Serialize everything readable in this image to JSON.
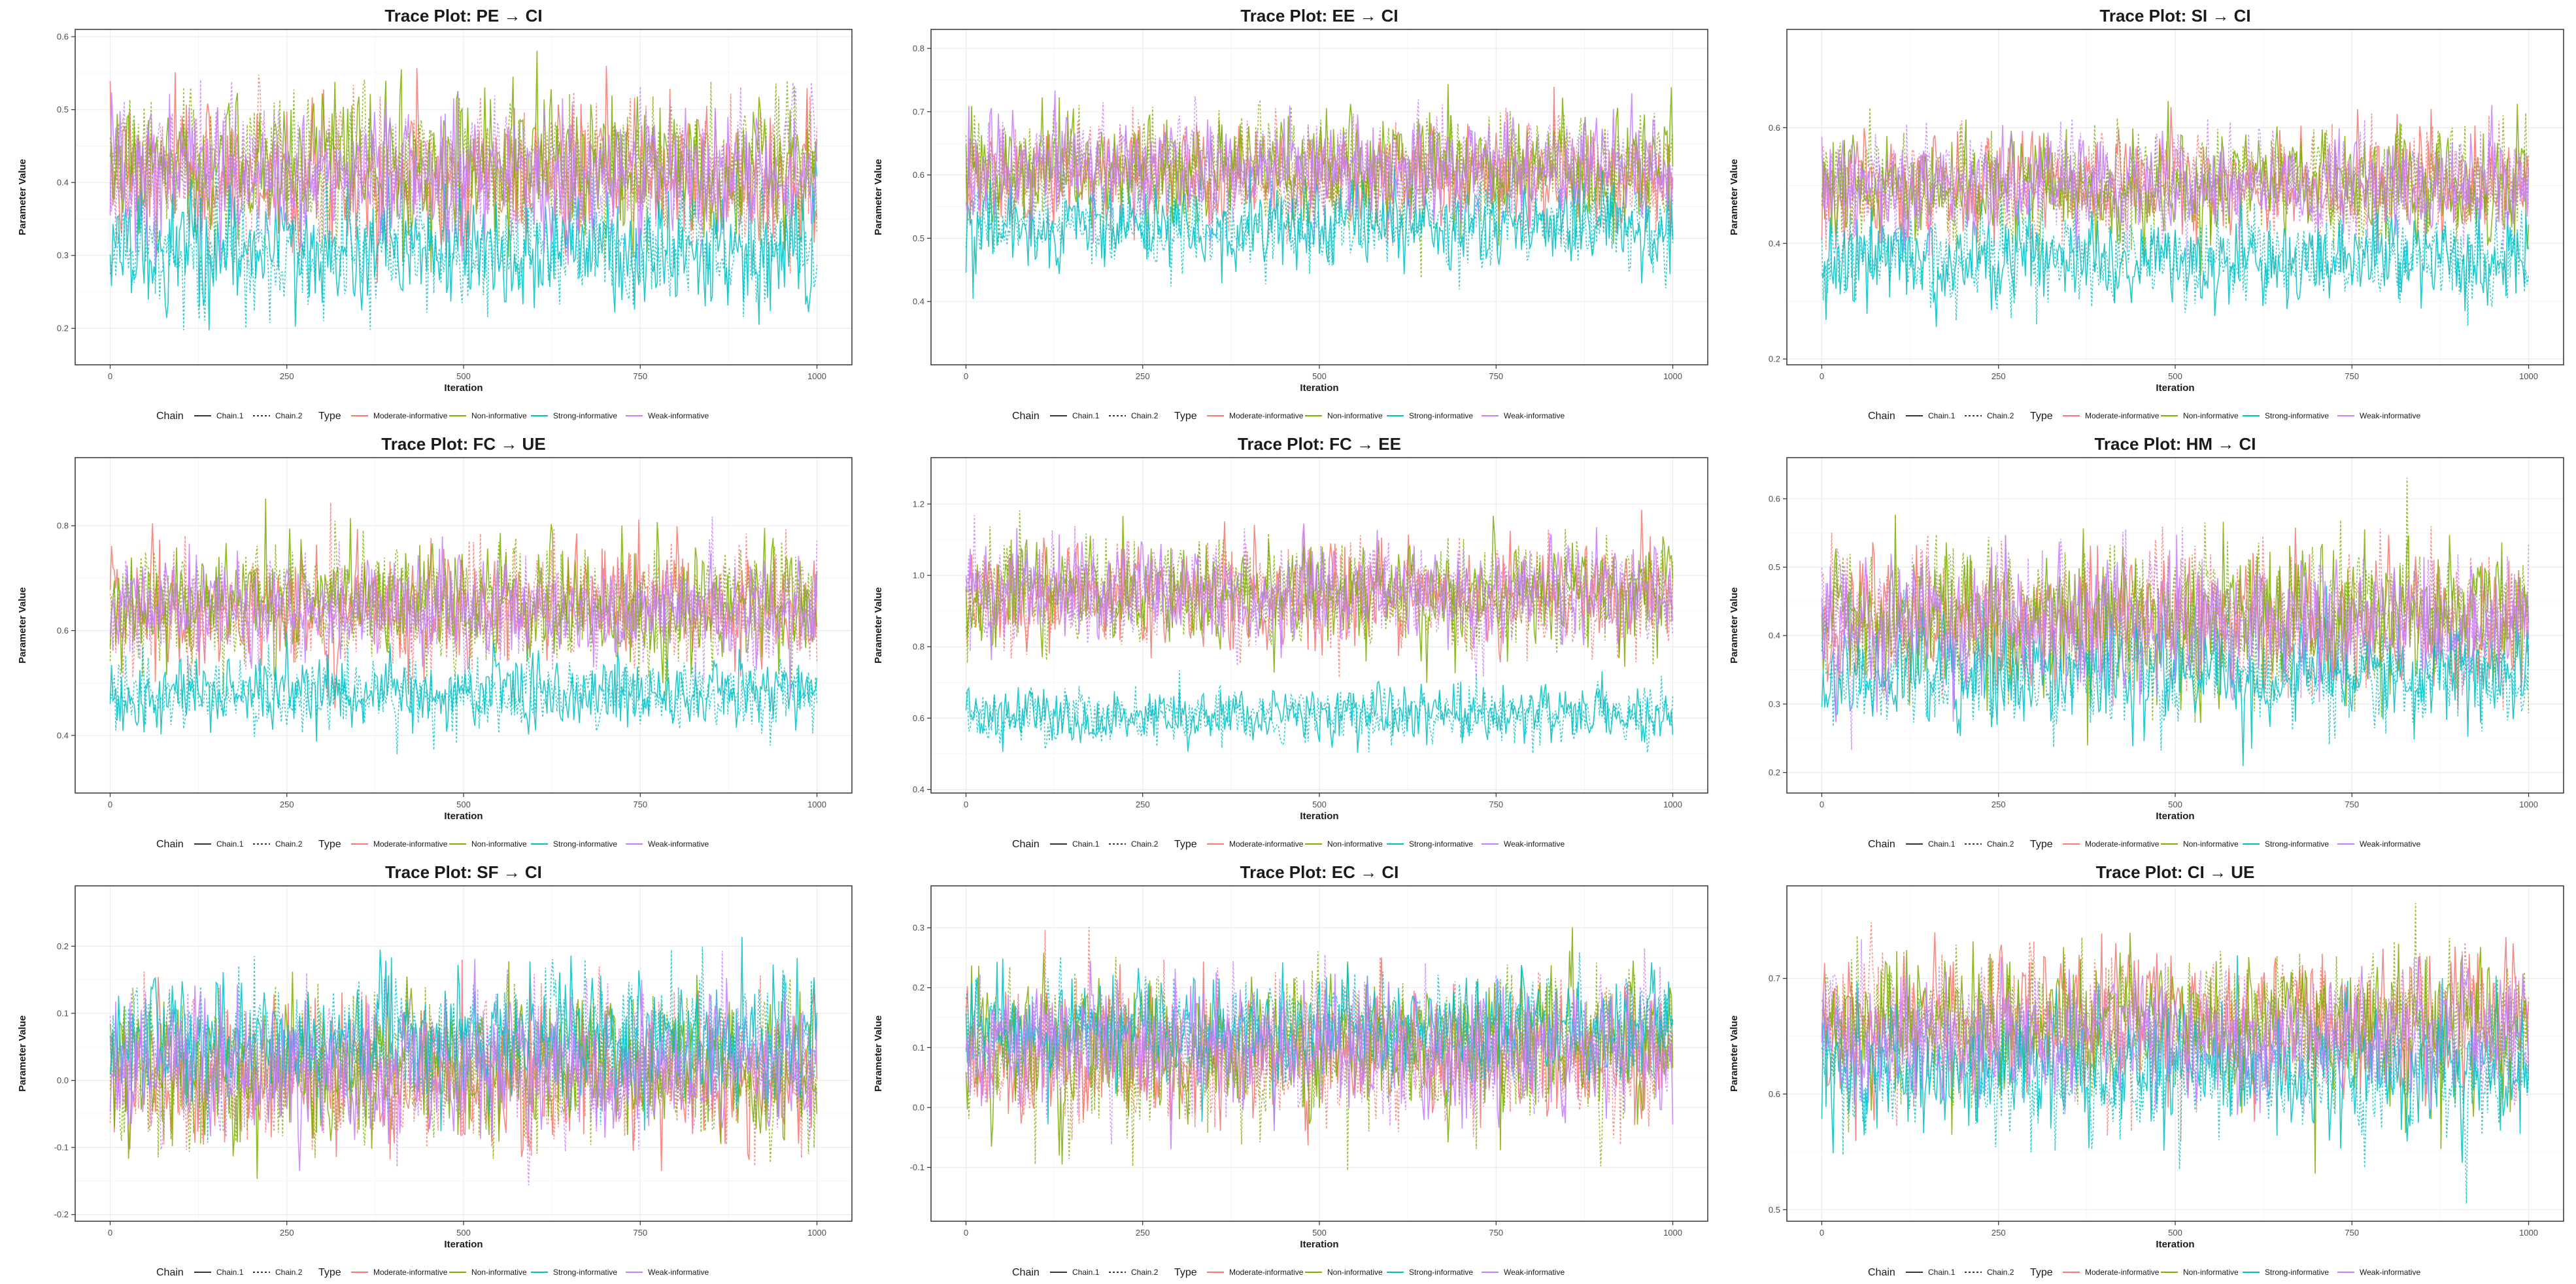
{
  "chart_data": [
    {
      "type": "line",
      "title": "Trace Plot: PE → CI",
      "xlabel": "Iteration",
      "ylabel": "Parameter Value",
      "xlim": [
        0,
        1000
      ],
      "ylim": [
        0.15,
        0.61
      ],
      "xticks": [
        0,
        250,
        500,
        750,
        1000
      ],
      "yticks": [
        0.2,
        0.3,
        0.4,
        0.5,
        0.6
      ],
      "series": [
        {
          "name": "Moderate-informative",
          "type": "Moderate-informative",
          "mean": 0.41,
          "sd": 0.055
        },
        {
          "name": "Non-informative",
          "type": "Non-informative",
          "mean": 0.42,
          "sd": 0.055
        },
        {
          "name": "Strong-informative",
          "type": "Strong-informative",
          "mean": 0.31,
          "sd": 0.045
        },
        {
          "name": "Weak-informative",
          "type": "Weak-informative",
          "mean": 0.41,
          "sd": 0.05
        }
      ]
    },
    {
      "type": "line",
      "title": "Trace Plot: EE → CI",
      "xlabel": "Iteration",
      "ylabel": "Parameter Value",
      "xlim": [
        0,
        1000
      ],
      "ylim": [
        0.3,
        0.83
      ],
      "xticks": [
        0,
        250,
        500,
        750,
        1000
      ],
      "yticks": [
        0.4,
        0.5,
        0.6,
        0.7,
        0.8
      ],
      "series": [
        {
          "name": "Moderate-informative",
          "type": "Moderate-informative",
          "mean": 0.6,
          "sd": 0.045
        },
        {
          "name": "Non-informative",
          "type": "Non-informative",
          "mean": 0.61,
          "sd": 0.05
        },
        {
          "name": "Strong-informative",
          "type": "Strong-informative",
          "mean": 0.52,
          "sd": 0.04
        },
        {
          "name": "Weak-informative",
          "type": "Weak-informative",
          "mean": 0.61,
          "sd": 0.045
        }
      ]
    },
    {
      "type": "line",
      "title": "Trace Plot: SI → CI",
      "xlabel": "Iteration",
      "ylabel": "Parameter Value",
      "xlim": [
        0,
        1000
      ],
      "ylim": [
        0.19,
        0.77
      ],
      "xticks": [
        0,
        250,
        500,
        750,
        1000
      ],
      "yticks": [
        0.2,
        0.4,
        0.6
      ],
      "series": [
        {
          "name": "Moderate-informative",
          "type": "Moderate-informative",
          "mean": 0.5,
          "sd": 0.05
        },
        {
          "name": "Non-informative",
          "type": "Non-informative",
          "mean": 0.5,
          "sd": 0.055
        },
        {
          "name": "Strong-informative",
          "type": "Strong-informative",
          "mean": 0.37,
          "sd": 0.045
        },
        {
          "name": "Weak-informative",
          "type": "Weak-informative",
          "mean": 0.5,
          "sd": 0.05
        }
      ]
    },
    {
      "type": "line",
      "title": "Trace Plot: FC → UE",
      "xlabel": "Iteration",
      "ylabel": "Parameter Value",
      "xlim": [
        0,
        1000
      ],
      "ylim": [
        0.29,
        0.93
      ],
      "xticks": [
        0,
        250,
        500,
        750,
        1000
      ],
      "yticks": [
        0.4,
        0.6,
        0.8
      ],
      "series": [
        {
          "name": "Moderate-informative",
          "type": "Moderate-informative",
          "mean": 0.64,
          "sd": 0.06
        },
        {
          "name": "Non-informative",
          "type": "Non-informative",
          "mean": 0.65,
          "sd": 0.065
        },
        {
          "name": "Strong-informative",
          "type": "Strong-informative",
          "mean": 0.48,
          "sd": 0.04
        },
        {
          "name": "Weak-informative",
          "type": "Weak-informative",
          "mean": 0.64,
          "sd": 0.055
        }
      ]
    },
    {
      "type": "line",
      "title": "Trace Plot: FC → EE",
      "xlabel": "Iteration",
      "ylabel": "Parameter Value",
      "xlim": [
        0,
        1000
      ],
      "ylim": [
        0.39,
        1.33
      ],
      "xticks": [
        0,
        250,
        500,
        750,
        1000
      ],
      "yticks": [
        0.4,
        0.6,
        0.8,
        1.0,
        1.2
      ],
      "series": [
        {
          "name": "Moderate-informative",
          "type": "Moderate-informative",
          "mean": 0.94,
          "sd": 0.08
        },
        {
          "name": "Non-informative",
          "type": "Non-informative",
          "mean": 0.95,
          "sd": 0.085
        },
        {
          "name": "Strong-informative",
          "type": "Strong-informative",
          "mean": 0.61,
          "sd": 0.045
        },
        {
          "name": "Weak-informative",
          "type": "Weak-informative",
          "mean": 0.95,
          "sd": 0.08
        }
      ]
    },
    {
      "type": "line",
      "title": "Trace Plot: HM → CI",
      "xlabel": "Iteration",
      "ylabel": "Parameter Value",
      "xlim": [
        0,
        1000
      ],
      "ylim": [
        0.17,
        0.66
      ],
      "xticks": [
        0,
        250,
        500,
        750,
        1000
      ],
      "yticks": [
        0.2,
        0.3,
        0.4,
        0.5,
        0.6
      ],
      "series": [
        {
          "name": "Moderate-informative",
          "type": "Moderate-informative",
          "mean": 0.42,
          "sd": 0.055
        },
        {
          "name": "Non-informative",
          "type": "Non-informative",
          "mean": 0.43,
          "sd": 0.06
        },
        {
          "name": "Strong-informative",
          "type": "Strong-informative",
          "mean": 0.34,
          "sd": 0.045
        },
        {
          "name": "Weak-informative",
          "type": "Weak-informative",
          "mean": 0.42,
          "sd": 0.055
        }
      ]
    },
    {
      "type": "line",
      "title": "Trace Plot: SF → CI",
      "xlabel": "Iteration",
      "ylabel": "Parameter Value",
      "xlim": [
        0,
        1000
      ],
      "ylim": [
        -0.21,
        0.29
      ],
      "xticks": [
        0,
        250,
        500,
        750,
        1000
      ],
      "yticks": [
        -0.2,
        -0.1,
        0.0,
        0.1,
        0.2
      ],
      "series": [
        {
          "name": "Moderate-informative",
          "type": "Moderate-informative",
          "mean": 0.01,
          "sd": 0.06
        },
        {
          "name": "Non-informative",
          "type": "Non-informative",
          "mean": 0.02,
          "sd": 0.065
        },
        {
          "name": "Strong-informative",
          "type": "Strong-informative",
          "mean": 0.06,
          "sd": 0.055
        },
        {
          "name": "Weak-informative",
          "type": "Weak-informative",
          "mean": 0.02,
          "sd": 0.06
        }
      ]
    },
    {
      "type": "line",
      "title": "Trace Plot: EC → CI",
      "xlabel": "Iteration",
      "ylabel": "Parameter Value",
      "xlim": [
        0,
        1000
      ],
      "ylim": [
        -0.19,
        0.37
      ],
      "xticks": [
        0,
        250,
        500,
        750,
        1000
      ],
      "yticks": [
        -0.1,
        0.0,
        0.1,
        0.2,
        0.3
      ],
      "series": [
        {
          "name": "Moderate-informative",
          "type": "Moderate-informative",
          "mean": 0.09,
          "sd": 0.065
        },
        {
          "name": "Non-informative",
          "type": "Non-informative",
          "mean": 0.1,
          "sd": 0.07
        },
        {
          "name": "Strong-informative",
          "type": "Strong-informative",
          "mean": 0.13,
          "sd": 0.05
        },
        {
          "name": "Weak-informative",
          "type": "Weak-informative",
          "mean": 0.1,
          "sd": 0.06
        }
      ]
    },
    {
      "type": "line",
      "title": "Trace Plot: CI → UE",
      "xlabel": "Iteration",
      "ylabel": "Parameter Value",
      "xlim": [
        0,
        1000
      ],
      "ylim": [
        0.49,
        0.78
      ],
      "xticks": [
        0,
        250,
        500,
        750,
        1000
      ],
      "yticks": [
        0.5,
        0.6,
        0.7
      ],
      "series": [
        {
          "name": "Moderate-informative",
          "type": "Moderate-informative",
          "mean": 0.66,
          "sd": 0.035
        },
        {
          "name": "Non-informative",
          "type": "Non-informative",
          "mean": 0.66,
          "sd": 0.035
        },
        {
          "name": "Strong-informative",
          "type": "Strong-informative",
          "mean": 0.62,
          "sd": 0.03
        },
        {
          "name": "Weak-informative",
          "type": "Weak-informative",
          "mean": 0.65,
          "sd": 0.03
        }
      ]
    }
  ],
  "legend": {
    "chain_title": "Chain",
    "chains": [
      "Chain.1",
      "Chain.2"
    ],
    "type_title": "Type",
    "types": [
      "Moderate-informative",
      "Non-informative",
      "Strong-informative",
      "Weak-informative"
    ]
  },
  "colors": {
    "Moderate-informative": "#F8766D",
    "Non-informative": "#7CAE00",
    "Strong-informative": "#00BFC4",
    "Weak-informative": "#C77CFF",
    "grid": "#EBEBEB",
    "panel_border": "#333333"
  },
  "sampling": {
    "iterations": 1000,
    "step": 2
  }
}
